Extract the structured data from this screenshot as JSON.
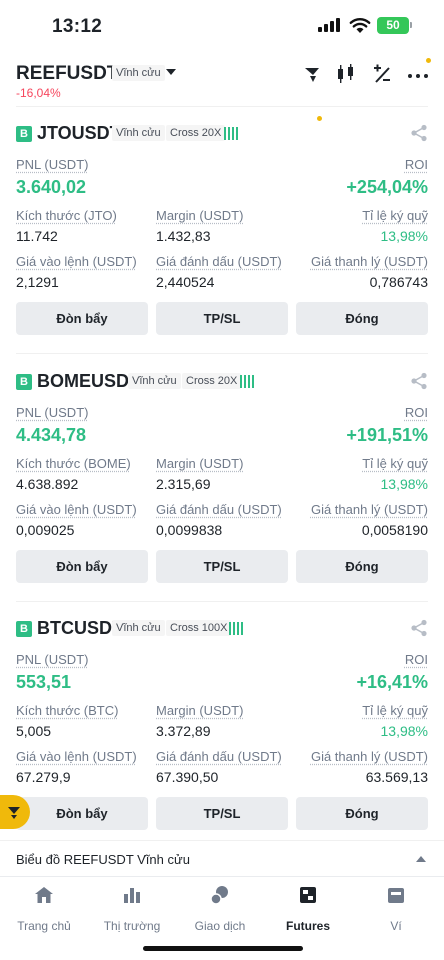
{
  "status_bar": {
    "time": "13:12",
    "battery": "50"
  },
  "header": {
    "symbol": "REEFUSDT",
    "contract_type": "Vĩnh cửu",
    "change": "-16,04%"
  },
  "labels": {
    "pnl": "PNL (USDT)",
    "roi": "ROI",
    "margin": "Margin (USDT)",
    "margin_ratio": "Tỉ lệ ký quỹ",
    "entry_price": "Giá vào lệnh (USDT)",
    "mark_price": "Giá đánh dấu (USDT)",
    "liq_price": "Giá thanh lý (USDT)",
    "btn_leverage": "Đòn bẩy",
    "btn_tpsl": "TP/SL",
    "btn_close": "Đóng"
  },
  "positions": [
    {
      "symbol": "JTOUSDT",
      "side_badge": "B",
      "contract_type": "Vĩnh cửu",
      "margin_mode": "Cross 20X",
      "pnl": "3.640,02",
      "roi": "+254,04%",
      "size_label": "Kích thước (JTO)",
      "size": "11.742",
      "margin": "1.432,83",
      "margin_ratio": "13,98%",
      "entry_price": "2,1291",
      "mark_price": "2,440524",
      "liq_price": "0,786743"
    },
    {
      "symbol": "BOMEUSDT",
      "side_badge": "B",
      "contract_type": "Vĩnh cửu",
      "margin_mode": "Cross 20X",
      "pnl": "4.434,78",
      "roi": "+191,51%",
      "size_label": "Kích thước (BOME)",
      "size": "4.638.892",
      "margin": "2.315,69",
      "margin_ratio": "13,98%",
      "entry_price": "0,009025",
      "mark_price": "0,0099838",
      "liq_price": "0,0058190"
    },
    {
      "symbol": "BTCUSDT",
      "side_badge": "B",
      "contract_type": "Vĩnh cửu",
      "margin_mode": "Cross 100X",
      "pnl": "553,51",
      "roi": "+16,41%",
      "size_label": "Kích thước (BTC)",
      "size": "5,005",
      "margin": "3.372,89",
      "margin_ratio": "13,98%",
      "entry_price": "67.279,9",
      "mark_price": "67.390,50",
      "liq_price": "63.569,13"
    }
  ],
  "chart_bar": {
    "label": "Biểu đồ REEFUSDT Vĩnh cửu"
  },
  "nav": [
    {
      "label": "Trang chủ",
      "icon": "home-icon"
    },
    {
      "label": "Thị trường",
      "icon": "markets-icon"
    },
    {
      "label": "Giao dịch",
      "icon": "trade-icon"
    },
    {
      "label": "Futures",
      "icon": "futures-icon",
      "active": true
    },
    {
      "label": "Ví",
      "icon": "wallet-icon"
    }
  ],
  "colors": {
    "up": "#2ebd85",
    "down": "#f6465d",
    "accent": "#f0b90b"
  }
}
